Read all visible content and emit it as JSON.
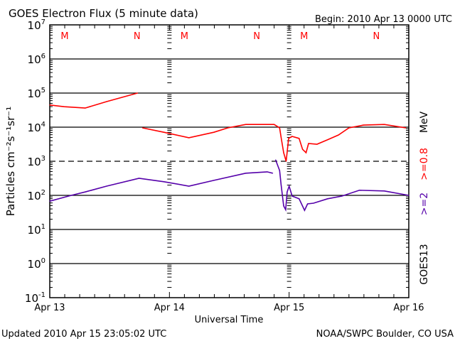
{
  "chart_data": {
    "type": "line",
    "title": "GOES Electron Flux (5 minute data)",
    "begin_label": "Begin: 2010 Apr 13 0000 UTC",
    "xlabel": "Universal Time",
    "ylabel": "Particles cm⁻²s⁻¹sr⁻¹",
    "y_scale": "log",
    "ylim_log10": [
      -1,
      7
    ],
    "xlim_hours": [
      0,
      72
    ],
    "x_ticks": [
      {
        "hour": 0,
        "label": "Apr 13"
      },
      {
        "hour": 24,
        "label": "Apr 14"
      },
      {
        "hour": 48,
        "label": "Apr 15"
      },
      {
        "hour": 72,
        "label": "Apr 16"
      }
    ],
    "y_ticks": [
      {
        "exp": 7,
        "base": "10",
        "sup": "7"
      },
      {
        "exp": 6,
        "base": "10",
        "sup": "6"
      },
      {
        "exp": 5,
        "base": "10",
        "sup": "5"
      },
      {
        "exp": 4,
        "base": "10",
        "sup": "4"
      },
      {
        "exp": 3,
        "base": "10",
        "sup": "3"
      },
      {
        "exp": 2,
        "base": "10",
        "sup": "2"
      },
      {
        "exp": 1,
        "base": "10",
        "sup": "1"
      },
      {
        "exp": 0,
        "base": "10",
        "sup": "0"
      },
      {
        "exp": -1,
        "base": "10",
        "sup": "-1"
      }
    ],
    "threshold_log10": 3,
    "markers": [
      {
        "hour": 3,
        "label": "M"
      },
      {
        "hour": 17.5,
        "label": "N"
      },
      {
        "hour": 27,
        "label": "M"
      },
      {
        "hour": 41.5,
        "label": "N"
      },
      {
        "hour": 51,
        "label": "M"
      },
      {
        "hour": 65.5,
        "label": "N"
      }
    ],
    "right_labels": {
      "mev": "MeV",
      "e08": ">=0.8",
      "e2": ">=2",
      "sat": "GOES13"
    },
    "series": [
      {
        "name": ">=0.8 MeV",
        "color": "#ff0000",
        "points": [
          [
            0,
            4.65
          ],
          [
            2.9,
            4.6
          ],
          [
            7.1,
            4.56
          ],
          [
            11.4,
            4.75
          ],
          [
            17.6,
            5.0
          ],
          null,
          [
            18.6,
            3.98
          ],
          [
            22.9,
            3.85
          ],
          [
            27.9,
            3.69
          ],
          [
            32.9,
            3.85
          ],
          [
            35.7,
            3.98
          ],
          [
            39.3,
            4.08
          ],
          [
            45,
            4.08
          ],
          [
            46.1,
            3.98
          ],
          [
            46.4,
            3.7
          ],
          [
            46.9,
            3.25
          ],
          [
            47.4,
            3.0
          ],
          [
            47.9,
            3.67
          ],
          [
            48.6,
            3.73
          ],
          [
            50,
            3.67
          ],
          [
            50.7,
            3.35
          ],
          [
            51.4,
            3.25
          ],
          [
            51.9,
            3.52
          ],
          [
            53.6,
            3.5
          ],
          [
            55.7,
            3.63
          ],
          [
            57.9,
            3.77
          ],
          [
            60,
            3.98
          ],
          [
            62.9,
            4.06
          ],
          [
            67.1,
            4.08
          ],
          [
            71.4,
            3.98
          ]
        ]
      },
      {
        "name": ">=2 MeV",
        "color": "#5500aa",
        "points": [
          [
            0,
            1.83
          ],
          [
            4.3,
            2.0
          ],
          [
            7.1,
            2.1
          ],
          [
            11.4,
            2.27
          ],
          [
            17.9,
            2.5
          ],
          [
            22.9,
            2.4
          ],
          [
            27.9,
            2.27
          ],
          [
            32.9,
            2.44
          ],
          [
            39.3,
            2.65
          ],
          [
            43.6,
            2.69
          ],
          [
            44.7,
            2.65
          ],
          null,
          [
            45.3,
            3.04
          ],
          [
            46.1,
            2.73
          ],
          [
            46.4,
            2.31
          ],
          [
            46.9,
            1.69
          ],
          [
            47.3,
            1.58
          ],
          [
            47.6,
            2.1
          ],
          [
            48,
            2.27
          ],
          [
            48.6,
            1.98
          ],
          [
            50,
            1.9
          ],
          [
            51.1,
            1.56
          ],
          [
            51.7,
            1.75
          ],
          [
            52.9,
            1.77
          ],
          [
            55.7,
            1.9
          ],
          [
            58.6,
            1.98
          ],
          [
            62.1,
            2.15
          ],
          [
            67.1,
            2.13
          ],
          [
            72,
            2.0
          ]
        ]
      }
    ]
  },
  "footer": {
    "updated": "Updated 2010 Apr 15 23:05:02 UTC",
    "source": "NOAA/SWPC Boulder, CO USA"
  }
}
